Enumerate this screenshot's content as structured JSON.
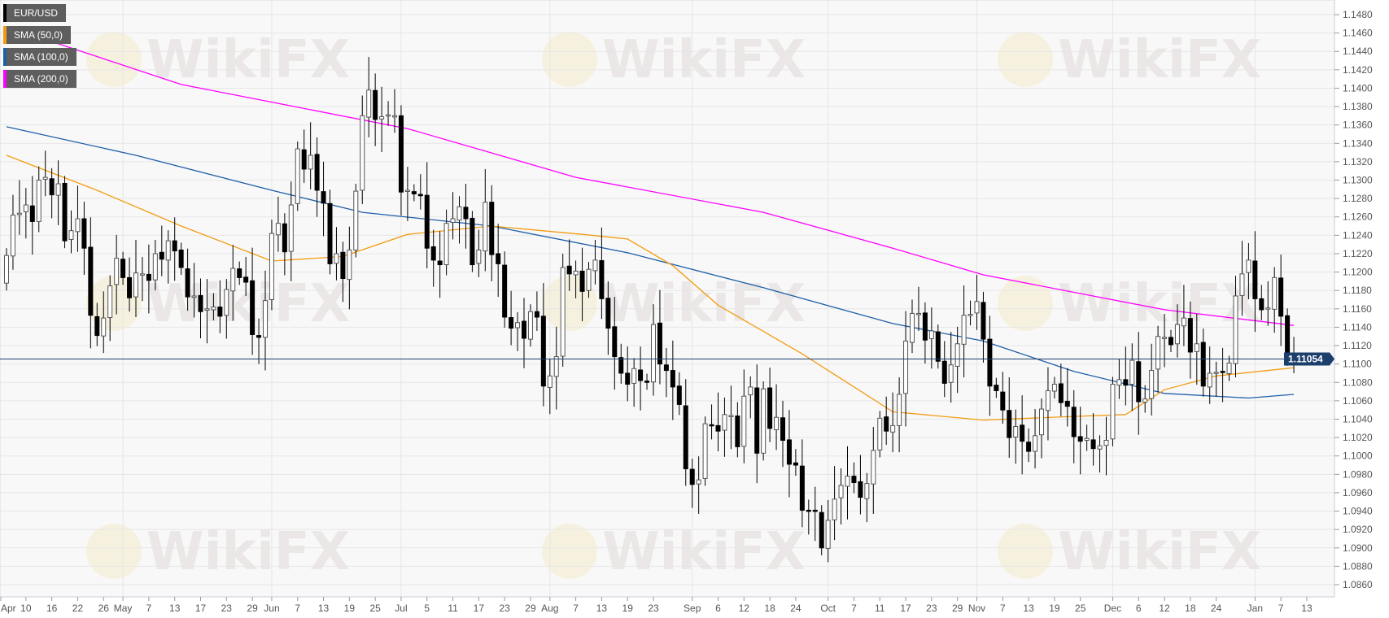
{
  "legend": [
    {
      "label": "EUR/USD",
      "color": "#000000"
    },
    {
      "label": "SMA (50,0)",
      "color": "#f39c12"
    },
    {
      "label": "SMA (100,0)",
      "color": "#1f5fa8"
    },
    {
      "label": "SMA (200,0)",
      "color": "#ff00ff"
    }
  ],
  "watermark": "WikiFX",
  "chart_data": {
    "type": "candlestick",
    "title": "EUR/USD",
    "ylim": [
      1.085,
      1.149
    ],
    "y_ticks": [
      "1.1480",
      "1.1460",
      "1.1440",
      "1.1420",
      "1.1400",
      "1.1380",
      "1.1360",
      "1.1340",
      "1.1320",
      "1.1300",
      "1.1280",
      "1.1260",
      "1.1240",
      "1.1220",
      "1.1200",
      "1.1180",
      "1.1160",
      "1.1140",
      "1.1120",
      "1.1100",
      "1.1080",
      "1.1060",
      "1.1040",
      "1.1020",
      "1.1000",
      "1.0980",
      "1.0960",
      "1.0940",
      "1.0920",
      "1.0900",
      "1.0880",
      "1.0860"
    ],
    "grid": true,
    "current_price": "1.11054",
    "colors": {
      "up": "#ffffff",
      "down": "#000000",
      "price_line": "#1c3e6b",
      "sma50": "#f39c12",
      "sma100": "#1f5fa8",
      "sma200": "#ff00ff"
    },
    "x_ticks": [
      {
        "label": "Apr",
        "i": -1
      },
      {
        "label": "10",
        "i": 3
      },
      {
        "label": "16",
        "i": 7
      },
      {
        "label": "22",
        "i": 11
      },
      {
        "label": "26",
        "i": 15
      },
      {
        "label": "May",
        "i": 18
      },
      {
        "label": "7",
        "i": 22
      },
      {
        "label": "13",
        "i": 26
      },
      {
        "label": "17",
        "i": 30
      },
      {
        "label": "23",
        "i": 34
      },
      {
        "label": "29",
        "i": 38
      },
      {
        "label": "Jun",
        "i": 41
      },
      {
        "label": "7",
        "i": 45
      },
      {
        "label": "13",
        "i": 49
      },
      {
        "label": "19",
        "i": 53
      },
      {
        "label": "25",
        "i": 57
      },
      {
        "label": "Jul",
        "i": 61
      },
      {
        "label": "5",
        "i": 65
      },
      {
        "label": "11",
        "i": 69
      },
      {
        "label": "17",
        "i": 73
      },
      {
        "label": "23",
        "i": 77
      },
      {
        "label": "29",
        "i": 81
      },
      {
        "label": "Aug",
        "i": 84
      },
      {
        "label": "7",
        "i": 88
      },
      {
        "label": "13",
        "i": 92
      },
      {
        "label": "19",
        "i": 96
      },
      {
        "label": "23",
        "i": 100
      },
      {
        "label": "Sep",
        "i": 106
      },
      {
        "label": "6",
        "i": 110
      },
      {
        "label": "12",
        "i": 114
      },
      {
        "label": "18",
        "i": 118
      },
      {
        "label": "24",
        "i": 122
      },
      {
        "label": "Oct",
        "i": 127
      },
      {
        "label": "7",
        "i": 131
      },
      {
        "label": "11",
        "i": 135
      },
      {
        "label": "17",
        "i": 139
      },
      {
        "label": "23",
        "i": 143
      },
      {
        "label": "29",
        "i": 147
      },
      {
        "label": "Nov",
        "i": 150
      },
      {
        "label": "7",
        "i": 154
      },
      {
        "label": "13",
        "i": 158
      },
      {
        "label": "19",
        "i": 162
      },
      {
        "label": "25",
        "i": 166
      },
      {
        "label": "Dec",
        "i": 171
      },
      {
        "label": "6",
        "i": 175
      },
      {
        "label": "12",
        "i": 179
      },
      {
        "label": "18",
        "i": 183
      },
      {
        "label": "24",
        "i": 187
      },
      {
        "label": "Jan",
        "i": 193
      },
      {
        "label": "7",
        "i": 197
      },
      {
        "label": "13",
        "i": 201
      }
    ],
    "month_gridlines": [
      18,
      41,
      61,
      84,
      106,
      127,
      150,
      171,
      193
    ],
    "closes": [
      1.1218,
      1.1262,
      1.1264,
      1.1273,
      1.1255,
      1.13,
      1.1303,
      1.1284,
      1.1296,
      1.1234,
      1.1245,
      1.1258,
      1.1226,
      1.1153,
      1.1131,
      1.115,
      1.1185,
      1.1215,
      1.1194,
      1.1172,
      1.1199,
      1.1198,
      1.1191,
      1.122,
      1.1214,
      1.1234,
      1.1223,
      1.1205,
      1.1173,
      1.1174,
      1.1157,
      1.116,
      1.1162,
      1.1152,
      1.1181,
      1.1204,
      1.1194,
      1.1189,
      1.1132,
      1.1129,
      1.1169,
      1.1242,
      1.1253,
      1.1222,
      1.1273,
      1.1334,
      1.1312,
      1.1327,
      1.1289,
      1.1275,
      1.1209,
      1.122,
      1.1193,
      1.1224,
      1.1288,
      1.137,
      1.1398,
      1.1366,
      1.1369,
      1.1371,
      1.137,
      1.1287,
      1.1289,
      1.1285,
      1.1283,
      1.1226,
      1.1213,
      1.1208,
      1.1253,
      1.1258,
      1.1271,
      1.1258,
      1.1208,
      1.1224,
      1.1276,
      1.1219,
      1.1209,
      1.1151,
      1.1139,
      1.1145,
      1.1128,
      1.1157,
      1.1151,
      1.1076,
      1.1087,
      1.1108,
      1.1205,
      1.1198,
      1.1201,
      1.1179,
      1.1203,
      1.1213,
      1.1171,
      1.1139,
      1.1108,
      1.109,
      1.1078,
      1.1095,
      1.1082,
      1.108,
      1.1143,
      1.11,
      1.1093,
      1.1075,
      1.1056,
      1.0986,
      1.0969,
      1.0974,
      1.1035,
      1.1033,
      1.1027,
      1.1045,
      1.1044,
      1.101,
      1.1065,
      1.1075,
      1.1003,
      1.1073,
      1.103,
      1.1042,
      1.1017,
      1.0991,
      1.099,
      1.0941,
      1.094,
      1.094,
      1.09,
      1.093,
      1.0953,
      1.0968,
      1.0978,
      1.0971,
      1.0955,
      1.097,
      1.1006,
      1.1041,
      1.1027,
      1.1033,
      1.1067,
      1.1125,
      1.1155,
      1.1155,
      1.1126,
      1.1136,
      1.1103,
      1.1079,
      1.1099,
      1.1122,
      1.1153,
      1.1154,
      1.1168,
      1.1127,
      1.1076,
      1.1071,
      1.105,
      1.102,
      1.1032,
      1.1016,
      1.1005,
      1.1022,
      1.1051,
      1.1071,
      1.1078,
      1.1058,
      1.1054,
      1.1021,
      1.1016,
      1.1019,
      1.1008,
      1.1011,
      1.1017,
      1.1078,
      1.1083,
      1.1077,
      1.1104,
      1.1059,
      1.1062,
      1.1093,
      1.113,
      1.1129,
      1.1121,
      1.1143,
      1.115,
      1.1113,
      1.1122,
      1.1076,
      1.109,
      1.1091,
      1.1091,
      1.1101,
      1.1174,
      1.1198,
      1.1213,
      1.1171,
      1.1159,
      1.1161,
      1.1194,
      1.1152,
      1.1106,
      1.1105
    ],
    "sma50": [
      [
        0,
        1.1327
      ],
      [
        14,
        1.1289
      ],
      [
        27,
        1.125
      ],
      [
        41,
        1.1212
      ],
      [
        52,
        1.1217
      ],
      [
        62,
        1.1241
      ],
      [
        75,
        1.125
      ],
      [
        89,
        1.1241
      ],
      [
        96,
        1.1236
      ],
      [
        103,
        1.1207
      ],
      [
        110,
        1.1164
      ],
      [
        123,
        1.1111
      ],
      [
        137,
        1.1048
      ],
      [
        151,
        1.1039
      ],
      [
        165,
        1.1043
      ],
      [
        173,
        1.1045
      ],
      [
        179,
        1.1072
      ],
      [
        187,
        1.1087
      ],
      [
        199,
        1.1096
      ]
    ],
    "sma100": [
      [
        0,
        1.1358
      ],
      [
        20,
        1.1327
      ],
      [
        41,
        1.1289
      ],
      [
        55,
        1.1265
      ],
      [
        75,
        1.125
      ],
      [
        96,
        1.1221
      ],
      [
        117,
        1.1183
      ],
      [
        137,
        1.1144
      ],
      [
        151,
        1.1125
      ],
      [
        165,
        1.1092
      ],
      [
        179,
        1.1068
      ],
      [
        192,
        1.1063
      ],
      [
        199,
        1.1067
      ]
    ],
    "sma200": [
      [
        0,
        1.1467
      ],
      [
        27,
        1.1404
      ],
      [
        62,
        1.1356
      ],
      [
        88,
        1.1303
      ],
      [
        117,
        1.1265
      ],
      [
        137,
        1.1226
      ],
      [
        151,
        1.1197
      ],
      [
        179,
        1.1159
      ],
      [
        199,
        1.1142
      ]
    ]
  }
}
